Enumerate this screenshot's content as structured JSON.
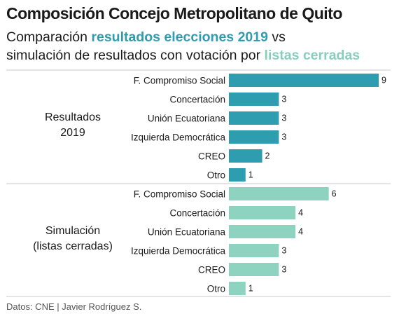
{
  "header": {
    "title": "Composición Concejo Metropolitano de Quito",
    "subtitle_part1": "Comparación ",
    "subtitle_hl1": "resultados elecciones 2019",
    "subtitle_part2": " vs",
    "subtitle_line2": "simulación de resultados con votación por ",
    "subtitle_hl2": "listas cerradas"
  },
  "footer": {
    "source": "Datos: CNE | Javier Rodríguez S."
  },
  "colors": {
    "results_2019": "#2e9db0",
    "simulation": "#8dd3bf",
    "divider": "#c8c8c8"
  },
  "chart_data": {
    "type": "bar",
    "orientation": "horizontal",
    "title": "Composición Concejo Metropolitano de Quito",
    "xlim": [
      0,
      9
    ],
    "categories": [
      "F. Compromiso Social",
      "Concertación",
      "Unión Ecuatoriana",
      "Izquierda Democrática",
      "CREO",
      "Otro"
    ],
    "series": [
      {
        "name": "Resultados 2019",
        "label_lines": [
          "Resultados",
          "2019"
        ],
        "values": [
          9,
          3,
          3,
          3,
          2,
          1
        ]
      },
      {
        "name": "Simulación (listas cerradas)",
        "label_lines": [
          "Simulación",
          "(listas cerradas)"
        ],
        "values": [
          6,
          4,
          4,
          3,
          3,
          1
        ]
      }
    ]
  }
}
